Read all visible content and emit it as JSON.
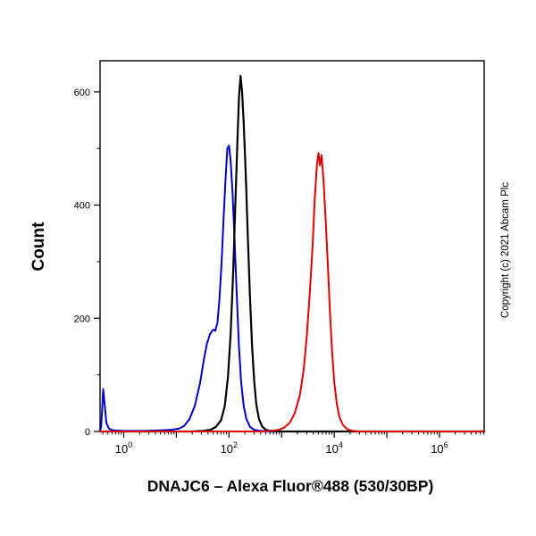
{
  "copyright": "Copyright (c) 2021 Abcam Plc",
  "chart_data": {
    "type": "line",
    "title": "DNAJC6 – Alexa Fluor®488 (530/30BP)",
    "xlabel": "",
    "ylabel": "Count",
    "x_scale": "log10",
    "xlim_log": [
      -0.45,
      6.85
    ],
    "ylim": [
      0,
      655
    ],
    "x_major_ticks_log": [
      0,
      1,
      2,
      3,
      4,
      5,
      6
    ],
    "x_labeled_ticks_log": [
      0,
      2,
      4,
      6
    ],
    "x_tick_base": "10",
    "y_major_ticks": [
      0,
      200,
      400,
      600
    ],
    "y_minor_ticks": [
      100,
      300,
      500
    ],
    "grid": false,
    "legend": null,
    "series": [
      {
        "name": "blue-curve",
        "color": "#0000cc",
        "points": [
          [
            -0.45,
            2
          ],
          [
            -0.43,
            8
          ],
          [
            -0.41,
            40
          ],
          [
            -0.39,
            75
          ],
          [
            -0.36,
            45
          ],
          [
            -0.33,
            15
          ],
          [
            -0.28,
            5
          ],
          [
            -0.2,
            2
          ],
          [
            0.0,
            1
          ],
          [
            0.4,
            1
          ],
          [
            0.7,
            2
          ],
          [
            0.9,
            3
          ],
          [
            1.05,
            5
          ],
          [
            1.15,
            10
          ],
          [
            1.25,
            22
          ],
          [
            1.35,
            45
          ],
          [
            1.45,
            85
          ],
          [
            1.52,
            125
          ],
          [
            1.58,
            155
          ],
          [
            1.64,
            172
          ],
          [
            1.7,
            180
          ],
          [
            1.74,
            178
          ],
          [
            1.78,
            192
          ],
          [
            1.82,
            235
          ],
          [
            1.86,
            300
          ],
          [
            1.9,
            380
          ],
          [
            1.94,
            455
          ],
          [
            1.97,
            500
          ],
          [
            2.0,
            505
          ],
          [
            2.03,
            480
          ],
          [
            2.07,
            420
          ],
          [
            2.11,
            330
          ],
          [
            2.15,
            235
          ],
          [
            2.19,
            150
          ],
          [
            2.23,
            88
          ],
          [
            2.28,
            45
          ],
          [
            2.33,
            22
          ],
          [
            2.4,
            8
          ],
          [
            2.48,
            3
          ],
          [
            2.6,
            1
          ],
          [
            2.8,
            0
          ],
          [
            6.85,
            0
          ]
        ]
      },
      {
        "name": "black-curve",
        "color": "#000000",
        "points": [
          [
            -0.45,
            0
          ],
          [
            1.3,
            0
          ],
          [
            1.5,
            1
          ],
          [
            1.65,
            3
          ],
          [
            1.75,
            8
          ],
          [
            1.85,
            20
          ],
          [
            1.92,
            45
          ],
          [
            1.98,
            95
          ],
          [
            2.03,
            170
          ],
          [
            2.08,
            280
          ],
          [
            2.12,
            400
          ],
          [
            2.16,
            510
          ],
          [
            2.19,
            590
          ],
          [
            2.22,
            628
          ],
          [
            2.25,
            600
          ],
          [
            2.28,
            545
          ],
          [
            2.32,
            450
          ],
          [
            2.36,
            340
          ],
          [
            2.4,
            235
          ],
          [
            2.44,
            150
          ],
          [
            2.48,
            88
          ],
          [
            2.52,
            48
          ],
          [
            2.57,
            22
          ],
          [
            2.63,
            9
          ],
          [
            2.7,
            3
          ],
          [
            2.8,
            1
          ],
          [
            3.0,
            0
          ],
          [
            6.85,
            0
          ]
        ]
      },
      {
        "name": "red-curve",
        "color": "#e00000",
        "points": [
          [
            -0.45,
            0
          ],
          [
            2.6,
            0
          ],
          [
            2.8,
            1
          ],
          [
            2.95,
            3
          ],
          [
            3.05,
            7
          ],
          [
            3.15,
            15
          ],
          [
            3.25,
            32
          ],
          [
            3.35,
            65
          ],
          [
            3.42,
            110
          ],
          [
            3.48,
            170
          ],
          [
            3.54,
            250
          ],
          [
            3.59,
            330
          ],
          [
            3.63,
            410
          ],
          [
            3.67,
            470
          ],
          [
            3.7,
            492
          ],
          [
            3.73,
            470
          ],
          [
            3.76,
            488
          ],
          [
            3.8,
            440
          ],
          [
            3.84,
            370
          ],
          [
            3.88,
            290
          ],
          [
            3.92,
            210
          ],
          [
            3.96,
            140
          ],
          [
            4.0,
            88
          ],
          [
            4.05,
            48
          ],
          [
            4.1,
            25
          ],
          [
            4.17,
            11
          ],
          [
            4.25,
            4
          ],
          [
            4.35,
            1
          ],
          [
            4.5,
            0
          ],
          [
            6.85,
            0
          ]
        ]
      }
    ]
  }
}
